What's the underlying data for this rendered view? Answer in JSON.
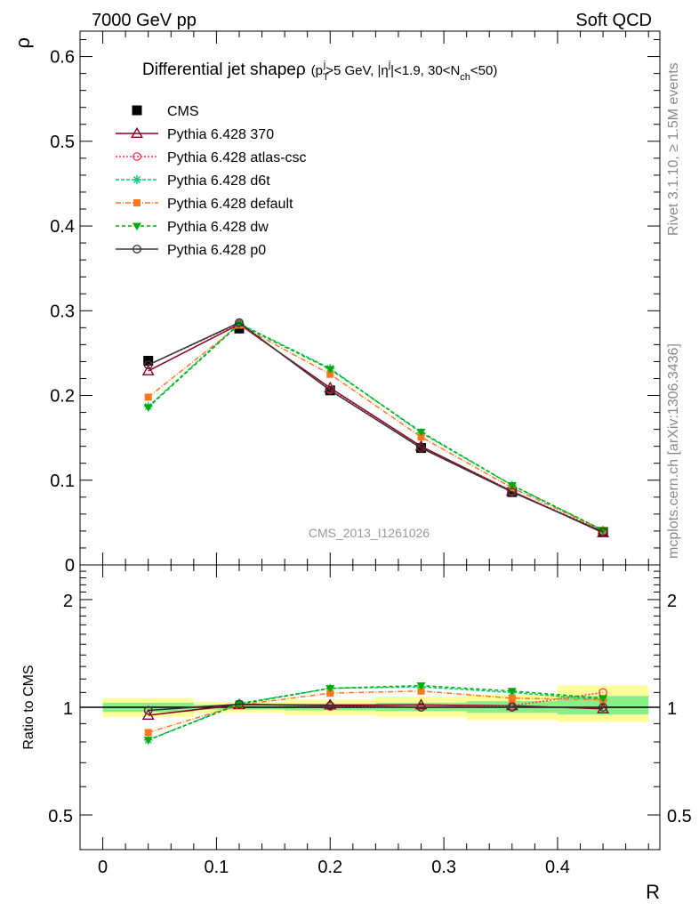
{
  "header": {
    "left": "7000 GeV pp",
    "right": "Soft QCD"
  },
  "side_labels": {
    "rivet": "Rivet 3.1.10, ≥ 1.5M events",
    "mcplots": "mcplots.cern.ch [arXiv:1306.3436]"
  },
  "watermark": "CMS_2013_I1261026",
  "title": {
    "main": "Differential jet shape",
    "rho": "ρ",
    "cond_p": "(p",
    "cond_T": "T",
    "cond_j1": "j",
    "cond_mid": ">5 GeV, |η",
    "cond_j2": "j",
    "cond_mid2": "|<1.9, 30<N",
    "cond_ch": "ch",
    "cond_end": "<50)"
  },
  "chart_data": [
    {
      "type": "line",
      "xlabel": "R",
      "ylabel": "ρ",
      "xlim": [
        -0.02,
        0.49
      ],
      "ylim": [
        0,
        0.63
      ],
      "x_ticks": [
        "0",
        "0.1",
        "0.2",
        "0.3",
        "0.4"
      ],
      "y_ticks": [
        "0",
        "0.1",
        "0.2",
        "0.3",
        "0.4",
        "0.5",
        "0.6"
      ],
      "x": [
        0.04,
        0.12,
        0.2,
        0.28,
        0.36,
        0.44
      ],
      "series": [
        {
          "name": "CMS",
          "color": "#000000",
          "marker": "square",
          "dash": "none",
          "values": [
            0.241,
            0.279,
            0.206,
            0.138,
            0.086,
            0.039
          ]
        },
        {
          "name": "Pythia 6.428 370",
          "color": "#8b0020",
          "marker": "triangle-open",
          "dash": "solid",
          "values": [
            0.229,
            0.284,
            0.209,
            0.14,
            0.087,
            0.038
          ]
        },
        {
          "name": "Pythia 6.428 atlas-csc",
          "color": "#ff3355",
          "marker": "circle-open",
          "dash": "2,2",
          "values": [
            0.236,
            0.285,
            0.207,
            0.138,
            0.087,
            0.04
          ]
        },
        {
          "name": "Pythia 6.428 d6t",
          "color": "#00cc77",
          "marker": "asterisk",
          "dash": "4,2",
          "values": [
            0.187,
            0.285,
            0.232,
            0.156,
            0.094,
            0.041
          ]
        },
        {
          "name": "Pythia 6.428 default",
          "color": "#ff7722",
          "marker": "square-filled",
          "dash": "6,2,1,2",
          "values": [
            0.198,
            0.283,
            0.225,
            0.151,
            0.091,
            0.041
          ]
        },
        {
          "name": "Pythia 6.428 dw",
          "color": "#00aa00",
          "marker": "triangle-down",
          "dash": "4,3",
          "values": [
            0.186,
            0.284,
            0.231,
            0.157,
            0.094,
            0.041
          ]
        },
        {
          "name": "Pythia 6.428 p0",
          "color": "#333333",
          "marker": "circle-open",
          "dash": "solid",
          "values": [
            0.236,
            0.286,
            0.206,
            0.138,
            0.086,
            0.039
          ]
        }
      ],
      "legend_position": "top-left"
    },
    {
      "type": "line",
      "xlabel": "R",
      "ylabel": "Ratio to CMS",
      "scale": "log",
      "ylim": [
        0.4,
        2.5
      ],
      "y_ticks": [
        "0.5",
        "1",
        "2"
      ],
      "x": [
        0.04,
        0.12,
        0.2,
        0.28,
        0.36,
        0.44
      ],
      "bands": {
        "edges": [
          0,
          0.08,
          0.16,
          0.24,
          0.32,
          0.4,
          0.48
        ],
        "inner": [
          [
            0.97,
            1.03
          ],
          [
            0.985,
            1.015
          ],
          [
            0.98,
            1.02
          ],
          [
            0.975,
            1.03
          ],
          [
            0.965,
            1.04
          ],
          [
            0.955,
            1.075
          ]
        ],
        "outer": [
          [
            0.94,
            1.06
          ],
          [
            0.965,
            1.035
          ],
          [
            0.95,
            1.05
          ],
          [
            0.94,
            1.07
          ],
          [
            0.92,
            1.085
          ],
          [
            0.91,
            1.15
          ]
        ]
      },
      "series": [
        {
          "name": "Pythia 6.428 370",
          "color": "#8b0020",
          "marker": "triangle-open",
          "dash": "solid",
          "values": [
            0.95,
            1.017,
            1.015,
            1.015,
            1.01,
            0.99
          ]
        },
        {
          "name": "Pythia 6.428 atlas-csc",
          "color": "#ff3355",
          "marker": "circle-open",
          "dash": "2,2",
          "values": [
            0.98,
            1.02,
            1.005,
            1.0,
            1.01,
            1.1
          ]
        },
        {
          "name": "Pythia 6.428 d6t",
          "color": "#00cc77",
          "marker": "asterisk",
          "dash": "4,2",
          "values": [
            0.81,
            1.025,
            1.13,
            1.14,
            1.1,
            1.05
          ]
        },
        {
          "name": "Pythia 6.428 default",
          "color": "#ff7722",
          "marker": "square-filled",
          "dash": "6,2,1,2",
          "values": [
            0.85,
            1.015,
            1.095,
            1.11,
            1.06,
            1.05
          ]
        },
        {
          "name": "Pythia 6.428 dw",
          "color": "#00aa00",
          "marker": "triangle-down",
          "dash": "4,3",
          "values": [
            0.81,
            1.02,
            1.13,
            1.15,
            1.11,
            1.06
          ]
        },
        {
          "name": "Pythia 6.428 p0",
          "color": "#333333",
          "marker": "circle-open",
          "dash": "solid",
          "values": [
            0.98,
            1.02,
            1.01,
            1.0,
            1.0,
            1.0
          ]
        }
      ]
    }
  ]
}
